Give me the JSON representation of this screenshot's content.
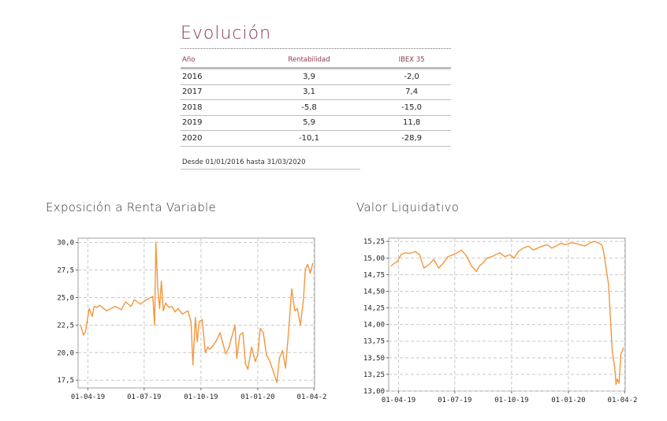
{
  "evolucion": {
    "title": "Evolución",
    "columns": [
      "Año",
      "Rentabilidad",
      "IBEX 35"
    ],
    "rows": [
      {
        "year": "2016",
        "rentabilidad": "3,9",
        "ibex": "-2,0"
      },
      {
        "year": "2017",
        "rentabilidad": "3,1",
        "ibex": "7,4"
      },
      {
        "year": "2018",
        "rentabilidad": "-5,8",
        "ibex": "-15,0"
      },
      {
        "year": "2019",
        "rentabilidad": "5,9",
        "ibex": "11,8"
      },
      {
        "year": "2020",
        "rentabilidad": "-10,1",
        "ibex": "-28,9"
      }
    ],
    "note": "Desde 01/01/2016 hasta 31/03/2020"
  },
  "chart_data": [
    {
      "type": "line",
      "title": "Exposición a Renta Variable",
      "color": "#f5963c",
      "x_ticks": [
        "01-04-19",
        "01-07-19",
        "01-10-19",
        "01-01-20",
        "01-04-20"
      ],
      "y_ticks": [
        "17,5",
        "20,0",
        "22,5",
        "25,0",
        "27,5",
        "30,0"
      ],
      "ylim": [
        16.8,
        30.4
      ],
      "grid": true,
      "x": [
        "2019-03-20",
        "2019-03-25",
        "2019-03-28",
        "2019-04-03",
        "2019-04-08",
        "2019-04-11",
        "2019-04-15",
        "2019-04-20",
        "2019-05-01",
        "2019-05-15",
        "2019-05-25",
        "2019-06-01",
        "2019-06-10",
        "2019-06-15",
        "2019-06-25",
        "2019-07-05",
        "2019-07-15",
        "2019-07-18",
        "2019-07-20",
        "2019-07-23",
        "2019-07-26",
        "2019-07-29",
        "2019-08-01",
        "2019-08-05",
        "2019-08-10",
        "2019-08-15",
        "2019-08-20",
        "2019-08-25",
        "2019-09-01",
        "2019-09-10",
        "2019-09-15",
        "2019-09-18",
        "2019-09-22",
        "2019-09-25",
        "2019-09-28",
        "2019-10-03",
        "2019-10-08",
        "2019-10-12",
        "2019-10-15",
        "2019-10-20",
        "2019-10-25",
        "2019-11-01",
        "2019-11-10",
        "2019-11-15",
        "2019-11-25",
        "2019-11-28",
        "2019-12-03",
        "2019-12-08",
        "2019-12-12",
        "2019-12-16",
        "2019-12-22",
        "2019-12-28",
        "2020-01-01",
        "2020-01-05",
        "2020-01-10",
        "2020-01-15",
        "2020-01-20",
        "2020-01-25",
        "2020-02-01",
        "2020-02-05",
        "2020-02-10",
        "2020-02-15",
        "2020-02-20",
        "2020-02-25",
        "2020-03-01",
        "2020-03-05",
        "2020-03-10",
        "2020-03-15",
        "2020-03-18",
        "2020-03-22",
        "2020-03-26",
        "2020-03-30"
      ],
      "y": [
        22.5,
        21.6,
        21.9,
        24.0,
        23.3,
        24.2,
        24.1,
        24.3,
        23.8,
        24.2,
        23.9,
        24.6,
        24.2,
        24.8,
        24.4,
        24.8,
        25.1,
        22.5,
        30.0,
        26.0,
        24.0,
        26.5,
        23.8,
        24.5,
        24.1,
        24.2,
        23.7,
        24.0,
        23.5,
        23.8,
        22.8,
        18.9,
        23.2,
        21.0,
        22.8,
        23.0,
        20.0,
        20.5,
        20.3,
        20.6,
        21.0,
        21.8,
        19.9,
        20.4,
        22.5,
        19.5,
        21.6,
        21.8,
        19.0,
        18.5,
        20.5,
        19.2,
        19.8,
        22.2,
        21.8,
        19.8,
        19.3,
        18.5,
        17.3,
        19.5,
        20.2,
        18.6,
        22.0,
        25.8,
        23.8,
        24.0,
        22.5,
        24.8,
        27.6,
        28.0,
        27.2,
        28.1
      ]
    },
    {
      "type": "line",
      "title": "Valor Liquidativo",
      "color": "#f5963c",
      "x_ticks": [
        "01-04-19",
        "01-07-19",
        "01-10-19",
        "01-01-20",
        "01-04-20"
      ],
      "y_ticks": [
        "13,00",
        "13,25",
        "13,50",
        "13,75",
        "14,00",
        "14,25",
        "14,50",
        "14,75",
        "15,00",
        "15,25"
      ],
      "ylim": [
        13.0,
        15.3
      ],
      "grid": true,
      "x": [
        "2019-03-20",
        "2019-03-25",
        "2019-03-30",
        "2019-04-05",
        "2019-04-12",
        "2019-04-20",
        "2019-04-28",
        "2019-05-05",
        "2019-05-12",
        "2019-05-20",
        "2019-05-28",
        "2019-06-05",
        "2019-06-12",
        "2019-06-20",
        "2019-06-28",
        "2019-07-05",
        "2019-07-12",
        "2019-07-20",
        "2019-07-28",
        "2019-08-05",
        "2019-08-10",
        "2019-08-15",
        "2019-08-22",
        "2019-08-30",
        "2019-09-05",
        "2019-09-12",
        "2019-09-20",
        "2019-09-28",
        "2019-10-05",
        "2019-10-12",
        "2019-10-20",
        "2019-10-28",
        "2019-11-05",
        "2019-11-12",
        "2019-11-20",
        "2019-11-28",
        "2019-12-05",
        "2019-12-12",
        "2019-12-20",
        "2019-12-28",
        "2020-01-05",
        "2020-01-12",
        "2020-01-20",
        "2020-01-28",
        "2020-02-05",
        "2020-02-12",
        "2020-02-20",
        "2020-02-24",
        "2020-02-27",
        "2020-03-02",
        "2020-03-06",
        "2020-03-09",
        "2020-03-12",
        "2020-03-16",
        "2020-03-18",
        "2020-03-20",
        "2020-03-23",
        "2020-03-26",
        "2020-03-30"
      ],
      "y": [
        14.88,
        14.92,
        14.95,
        15.05,
        15.08,
        15.07,
        15.1,
        15.05,
        14.85,
        14.9,
        14.98,
        14.85,
        14.92,
        15.02,
        15.05,
        15.08,
        15.12,
        15.03,
        14.88,
        14.8,
        14.88,
        14.92,
        15.0,
        15.02,
        15.05,
        15.08,
        15.02,
        15.05,
        15.0,
        15.1,
        15.15,
        15.18,
        15.12,
        15.15,
        15.18,
        15.2,
        15.15,
        15.18,
        15.22,
        15.2,
        15.23,
        15.22,
        15.2,
        15.18,
        15.23,
        15.25,
        15.22,
        15.2,
        15.1,
        14.85,
        14.6,
        14.1,
        13.6,
        13.35,
        13.1,
        13.18,
        13.12,
        13.55,
        13.65
      ]
    }
  ]
}
